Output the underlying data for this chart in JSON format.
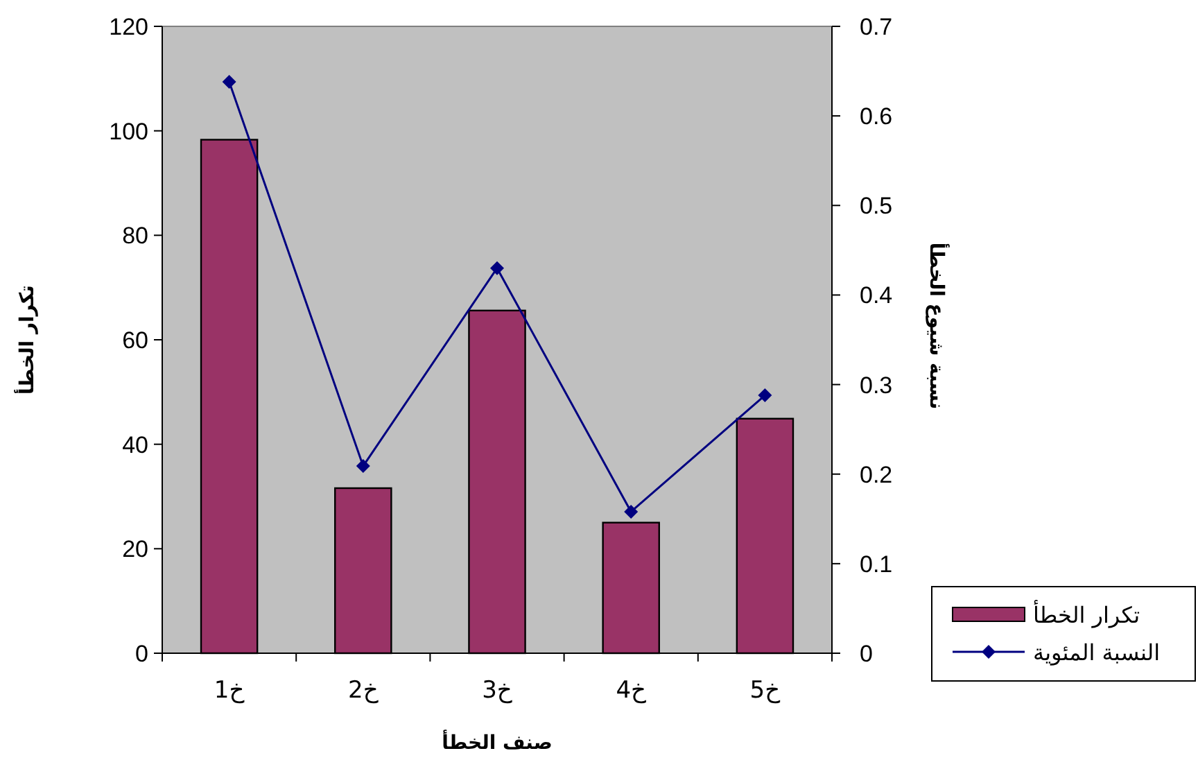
{
  "chart_data": {
    "type": "bar",
    "categories": [
      "خ1",
      "خ2",
      "خ3",
      "خ4",
      "خ5"
    ],
    "xlabel": "صنف الخطأ",
    "ylabel": "تكرار الخطأ",
    "y2label": "نسبة شيوع الخطأ",
    "series": [
      {
        "name": "تكرار الخطأ",
        "color": "#993366",
        "values": [
          98.3,
          31.6,
          65.6,
          25,
          44.9
        ]
      },
      {
        "name": "النسبة المئوية",
        "type": "line",
        "axis": "y2",
        "color": "#000080",
        "marker": "diamond",
        "values": [
          0.638,
          0.209,
          0.43,
          0.158,
          0.288
        ]
      }
    ],
    "ylim": [
      0,
      120
    ],
    "yticks": [
      0,
      20,
      40,
      60,
      80,
      100,
      120
    ],
    "y2lim": [
      0,
      0.7
    ],
    "y2ticks": [
      0,
      0.1,
      0.2,
      0.3,
      0.4,
      0.5,
      0.6,
      0.7
    ],
    "legend": "bottom right"
  }
}
